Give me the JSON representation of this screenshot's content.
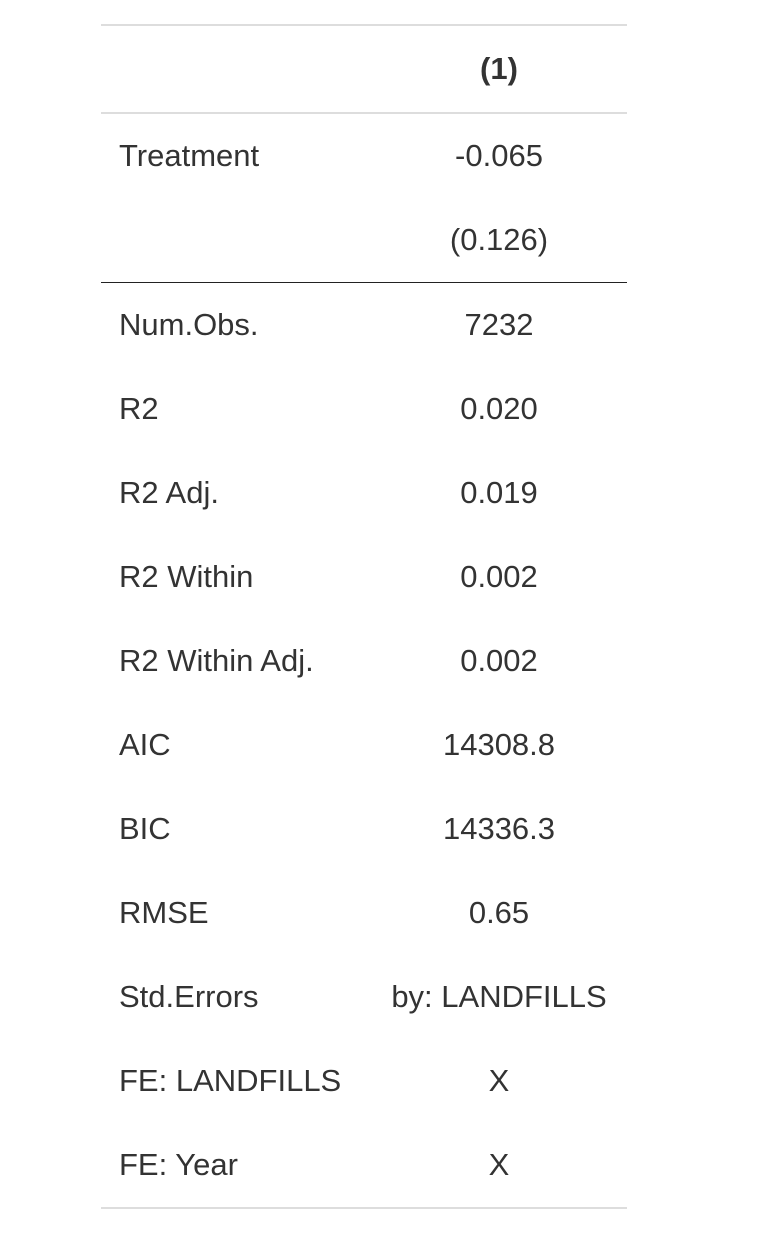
{
  "table": {
    "column_header": "(1)",
    "coefficient_rows": [
      {
        "label": "Treatment",
        "value": "-0.065"
      },
      {
        "label": "",
        "value": "(0.126)"
      }
    ],
    "stat_rows": [
      {
        "label": "Num.Obs.",
        "value": "7232"
      },
      {
        "label": "R2",
        "value": "0.020"
      },
      {
        "label": "R2 Adj.",
        "value": "0.019"
      },
      {
        "label": "R2 Within",
        "value": "0.002"
      },
      {
        "label": "R2 Within Adj.",
        "value": "0.002"
      },
      {
        "label": "AIC",
        "value": "14308.8"
      },
      {
        "label": "BIC",
        "value": "14336.3"
      },
      {
        "label": "RMSE",
        "value": "0.65"
      },
      {
        "label": "Std.Errors",
        "value": "by: LANDFILLS"
      },
      {
        "label": "FE: LANDFILLS",
        "value": "X"
      },
      {
        "label": "FE: Year",
        "value": "X"
      }
    ]
  }
}
